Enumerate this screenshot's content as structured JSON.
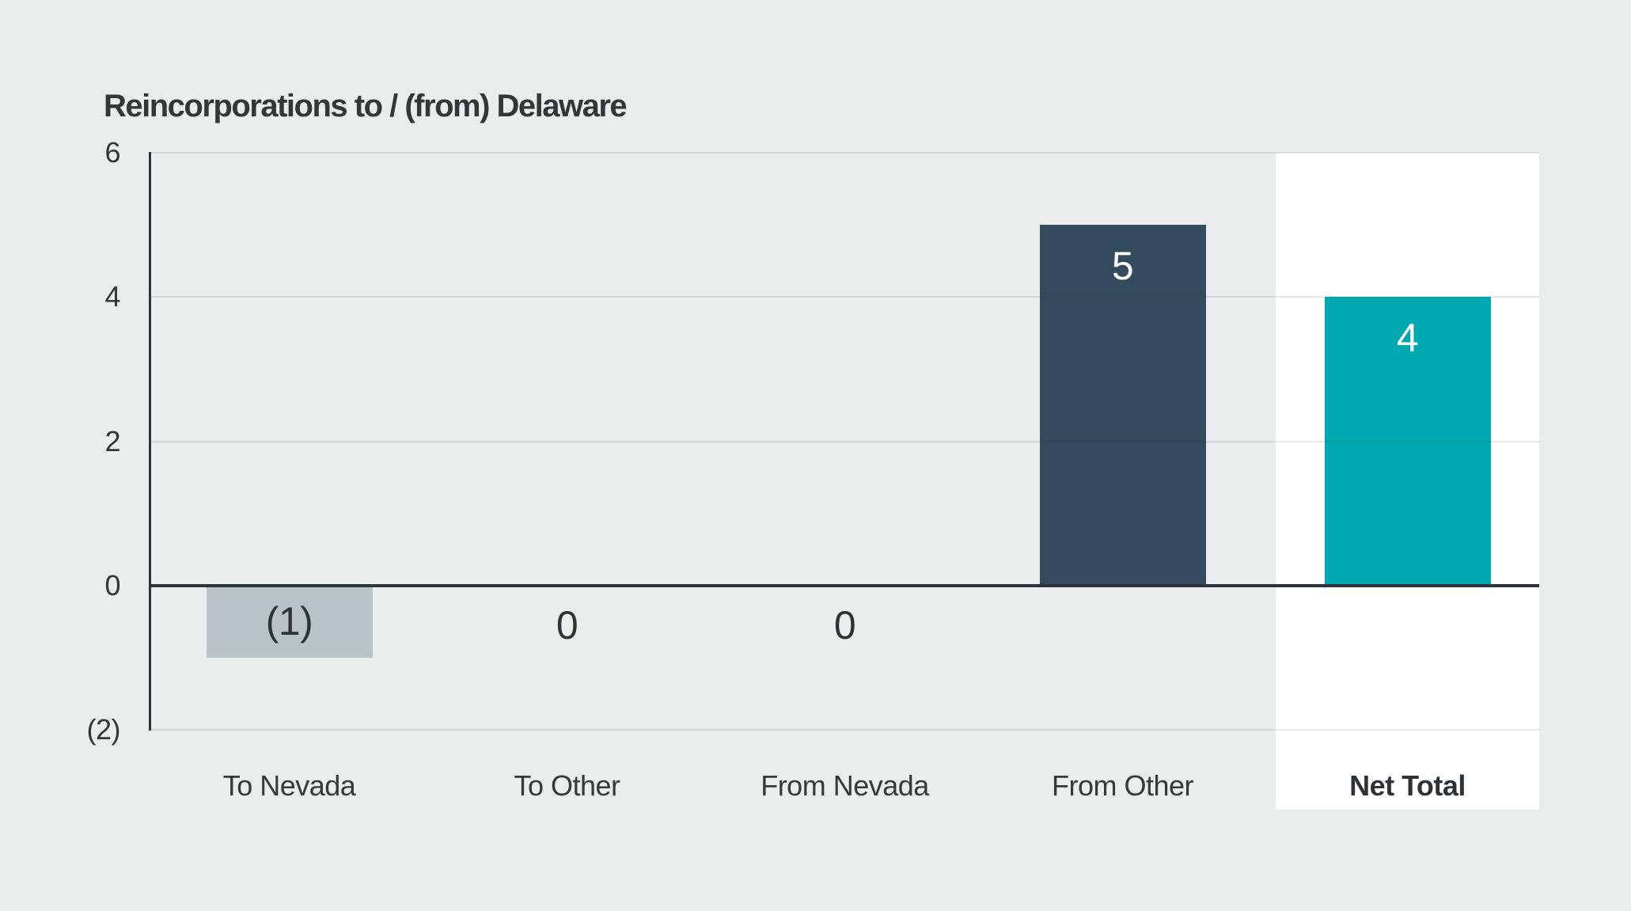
{
  "title": "Reincorporations to / (from) Delaware",
  "colors": {
    "background": "#e9edee",
    "axis_line": "#2e3439",
    "gridline_overlay": "rgba(45,55,60,0.12)",
    "highlight_band": "#ffffff",
    "negative_bar": "#b9c2c7",
    "from_other_bar": "#334b5c",
    "net_total_bar": "#00a9b2",
    "text_dark": "#33373a",
    "text_light": "#ffffff"
  },
  "chart_data": {
    "type": "bar",
    "title": "Reincorporations to / (from) Delaware",
    "categories": [
      "To Nevada",
      "To Other",
      "From Nevada",
      "From Other",
      "Net Total"
    ],
    "values": [
      -1,
      0,
      0,
      5,
      4
    ],
    "value_labels": [
      "(1)",
      "0",
      "0",
      "5",
      "4"
    ],
    "bar_colors": [
      "#b9c2c7",
      null,
      null,
      "#334b5c",
      "#00a9b2"
    ],
    "label_styles": [
      "dark",
      "dark",
      "dark",
      "light",
      "light"
    ],
    "bold_categories": [
      false,
      false,
      false,
      false,
      true
    ],
    "highlighted_category": "Net Total",
    "xlabel": "",
    "ylabel": "",
    "ylim": [
      -2,
      6
    ],
    "yticks": [
      6,
      4,
      2,
      0,
      -2
    ],
    "ytick_labels": [
      "6",
      "4",
      "2",
      "0",
      "(2)"
    ],
    "grid": true,
    "legend": false
  }
}
